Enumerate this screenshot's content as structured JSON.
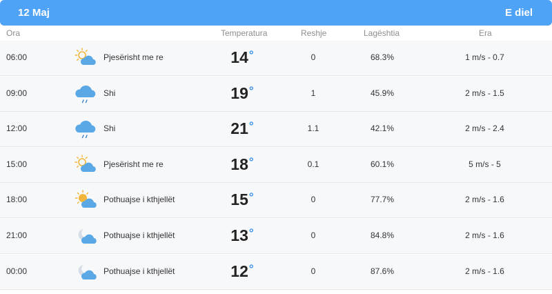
{
  "header": {
    "date": "12 Maj",
    "day": "E diel",
    "color": "#4fa3f7"
  },
  "columns": {
    "time": "Ora",
    "temperature": "Temperatura",
    "precipitation": "Reshje",
    "humidity": "Lagështia",
    "wind": "Era"
  },
  "rows": [
    {
      "time": "06:00",
      "icon": "partly-cloudy-day-icon",
      "condition": "Pjesërisht me re",
      "temp": "14",
      "deg": "°",
      "rain": "0",
      "humidity": "68.3%",
      "wind": "1 m/s - 0.7"
    },
    {
      "time": "09:00",
      "icon": "rain-cloud-icon",
      "condition": "Shi",
      "temp": "19",
      "deg": "°",
      "rain": "1",
      "humidity": "45.9%",
      "wind": "2 m/s - 1.5"
    },
    {
      "time": "12:00",
      "icon": "rain-cloud-icon",
      "condition": "Shi",
      "temp": "21",
      "deg": "°",
      "rain": "1.1",
      "humidity": "42.1%",
      "wind": "2 m/s - 2.4"
    },
    {
      "time": "15:00",
      "icon": "partly-cloudy-day-icon",
      "condition": "Pjesërisht me re",
      "temp": "18",
      "deg": "°",
      "rain": "0.1",
      "humidity": "60.1%",
      "wind": "5 m/s - 5"
    },
    {
      "time": "18:00",
      "icon": "mostly-clear-day-icon",
      "condition": "Pothuajse i kthjellët",
      "temp": "15",
      "deg": "°",
      "rain": "0",
      "humidity": "77.7%",
      "wind": "2 m/s - 1.6"
    },
    {
      "time": "21:00",
      "icon": "mostly-clear-night-icon",
      "condition": "Pothuajse i kthjellët",
      "temp": "13",
      "deg": "°",
      "rain": "0",
      "humidity": "84.8%",
      "wind": "2 m/s - 1.6"
    },
    {
      "time": "00:00",
      "icon": "mostly-clear-night-icon",
      "condition": "Pothuajse i kthjellët",
      "temp": "12",
      "deg": "°",
      "rain": "0",
      "humidity": "87.6%",
      "wind": "2 m/s - 1.6"
    }
  ]
}
